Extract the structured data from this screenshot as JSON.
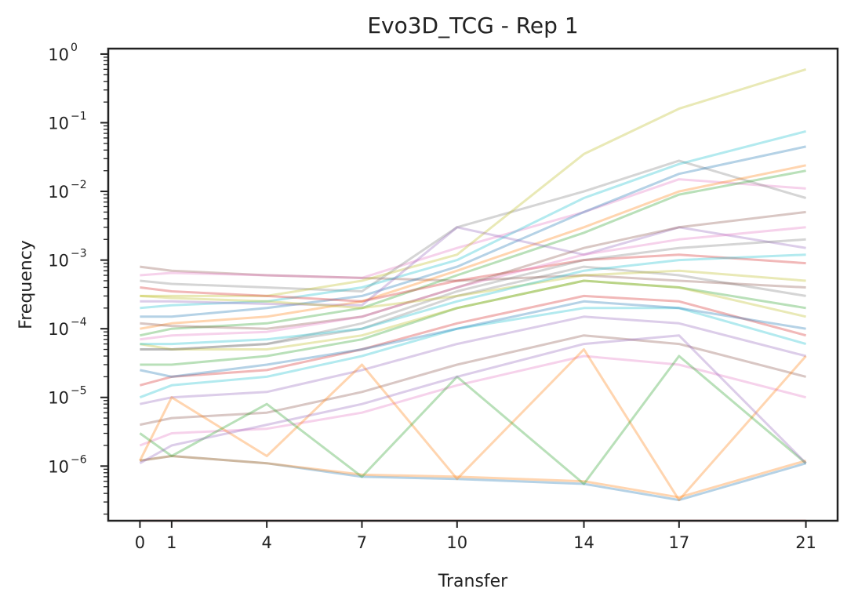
{
  "chart_data": {
    "type": "line",
    "title": "Evo3D_TCG - Rep 1",
    "xlabel": "Transfer",
    "ylabel": "Frequency",
    "x": [
      0,
      1,
      4,
      7,
      10,
      14,
      17,
      21
    ],
    "x_ticks": [
      "0",
      "1",
      "4",
      "7",
      "10",
      "14",
      "17",
      "21"
    ],
    "xlim": [
      -1.0,
      22.0
    ],
    "yscale": "log",
    "ylim": [
      1.6e-07,
      1.2
    ],
    "y_ticks": [
      {
        "base": "10",
        "exp": "0"
      },
      {
        "base": "10",
        "exp": "−1"
      },
      {
        "base": "10",
        "exp": "−2"
      },
      {
        "base": "10",
        "exp": "−3"
      },
      {
        "base": "10",
        "exp": "−4"
      },
      {
        "base": "10",
        "exp": "−5"
      },
      {
        "base": "10",
        "exp": "−6"
      }
    ],
    "grid": false,
    "legend": "none",
    "line_alpha": 0.15,
    "palette": [
      "#1f77b4",
      "#ff7f0e",
      "#2ca02c",
      "#d62728",
      "#9467bd",
      "#8c564b",
      "#e377c2",
      "#7f7f7f",
      "#bcbd22",
      "#17becf"
    ],
    "series": [
      {
        "values": [
          1.2e-06,
          1.4e-06,
          1.1e-06,
          7e-07,
          6.5e-07,
          5.5e-07,
          3.2e-07,
          1.1e-06
        ]
      },
      {
        "values": [
          1.2e-06,
          1.4e-06,
          1.1e-06,
          7.5e-07,
          7e-07,
          6e-07,
          3.5e-07,
          1.2e-06
        ]
      },
      {
        "values": [
          3e-05,
          3e-05,
          4e-05,
          7e-05,
          0.0002,
          0.0005,
          0.0004,
          0.0002
        ]
      },
      {
        "values": [
          1.5e-05,
          2e-05,
          2.5e-05,
          5e-05,
          0.00012,
          0.0003,
          0.00025,
          8e-05
        ]
      },
      {
        "values": [
          8e-06,
          1e-05,
          1.2e-05,
          2.5e-05,
          6e-05,
          0.00015,
          0.00012,
          4e-05
        ]
      },
      {
        "values": [
          4e-06,
          5e-06,
          6e-06,
          1.2e-05,
          3e-05,
          8e-05,
          6e-05,
          2e-05
        ]
      },
      {
        "values": [
          2e-06,
          3e-06,
          3.5e-06,
          6e-06,
          1.5e-05,
          4e-05,
          3e-05,
          1e-05
        ]
      },
      {
        "values": [
          5e-05,
          5e-05,
          6e-05,
          0.0001,
          0.0003,
          0.0008,
          0.0006,
          0.0003
        ]
      },
      {
        "values": [
          6e-05,
          5e-05,
          5e-05,
          8e-05,
          0.0002,
          0.0005,
          0.0004,
          0.00015
        ]
      },
      {
        "values": [
          1e-05,
          1.5e-05,
          2e-05,
          4e-05,
          0.0001,
          0.0002,
          0.0002,
          6e-05
        ]
      },
      {
        "values": [
          2.5e-05,
          2e-05,
          3e-05,
          5e-05,
          0.0001,
          0.00025,
          0.0002,
          0.0001
        ]
      },
      {
        "values": [
          1.2e-06,
          1e-05,
          1.4e-06,
          3e-05,
          6.5e-07,
          5e-05,
          3.2e-07,
          4e-05
        ]
      },
      {
        "values": [
          3e-06,
          1.4e-06,
          8e-06,
          7e-07,
          2e-05,
          5.5e-07,
          4e-05,
          1.1e-06
        ]
      },
      {
        "values": [
          1.6e-07,
          1.6e-07,
          1.6e-07,
          1.6e-07,
          1.6e-07,
          1.6e-07,
          1.6e-07,
          1.6e-07
        ]
      },
      {
        "values": [
          1.1e-06,
          2e-06,
          4e-06,
          8e-06,
          2e-05,
          6e-05,
          8e-05,
          1.1e-06
        ]
      },
      {
        "values": [
          0.0008,
          0.0007,
          0.0006,
          0.00055,
          0.0005,
          0.0006,
          0.0005,
          0.0004
        ]
      },
      {
        "values": [
          0.0006,
          0.00065,
          0.0006,
          0.00055,
          0.0015,
          0.005,
          0.015,
          0.011
        ]
      },
      {
        "values": [
          0.0005,
          0.00045,
          0.0004,
          0.00035,
          0.003,
          0.01,
          0.028,
          0.008
        ]
      },
      {
        "values": [
          0.0003,
          0.0003,
          0.0003,
          0.0005,
          0.0012,
          0.035,
          0.16,
          0.6
        ]
      },
      {
        "values": [
          0.0002,
          0.00022,
          0.00025,
          0.0004,
          0.001,
          0.008,
          0.025,
          0.075
        ]
      },
      {
        "values": [
          0.00015,
          0.00015,
          0.0002,
          0.0003,
          0.0008,
          0.005,
          0.018,
          0.045
        ]
      },
      {
        "values": [
          0.0001,
          0.00012,
          0.00015,
          0.00025,
          0.0007,
          0.003,
          0.01,
          0.024
        ]
      },
      {
        "values": [
          8e-05,
          0.0001,
          0.00012,
          0.0002,
          0.0006,
          0.0025,
          0.009,
          0.02
        ]
      },
      {
        "values": [
          0.0004,
          0.00035,
          0.0003,
          0.00025,
          0.0005,
          0.001,
          0.0012,
          0.0009
        ]
      },
      {
        "values": [
          0.00025,
          0.00025,
          0.00023,
          0.00022,
          0.003,
          0.0012,
          0.003,
          0.0015
        ]
      },
      {
        "values": [
          0.00012,
          0.00011,
          0.0001,
          0.00015,
          0.0004,
          0.0015,
          0.003,
          0.005
        ]
      },
      {
        "values": [
          7e-05,
          8e-05,
          9e-05,
          0.00015,
          0.0004,
          0.0012,
          0.002,
          0.003
        ]
      },
      {
        "values": [
          5e-05,
          5e-05,
          6e-05,
          0.00012,
          0.00035,
          0.001,
          0.0015,
          0.002
        ]
      },
      {
        "values": [
          0.0003,
          0.00028,
          0.00025,
          0.0002,
          0.0003,
          0.0006,
          0.0007,
          0.0005
        ]
      },
      {
        "values": [
          6e-05,
          6e-05,
          7e-05,
          0.0001,
          0.00025,
          0.0007,
          0.001,
          0.0012
        ]
      }
    ]
  }
}
